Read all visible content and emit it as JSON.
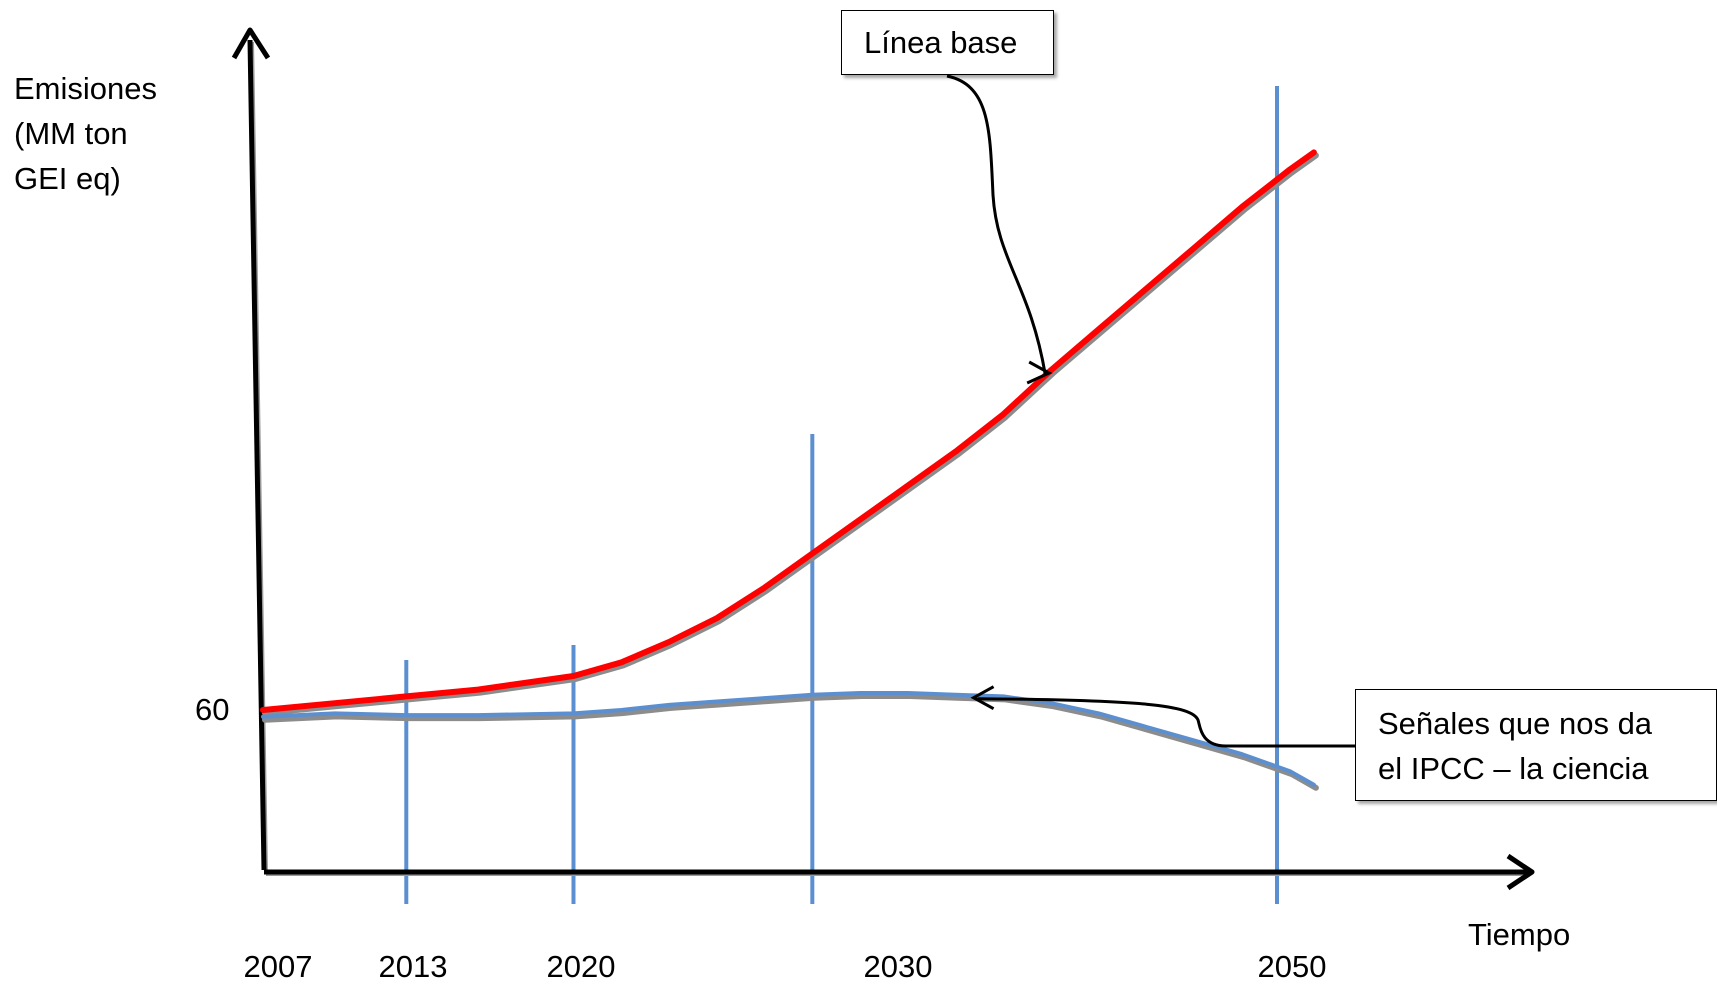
{
  "chart_data": {
    "type": "line",
    "ylabel": [
      "Emisiones",
      "(MM ton",
      "GEI eq)"
    ],
    "xlabel": "Tiempo",
    "xticks": [
      "2007",
      "2013",
      "2020",
      "2030",
      "2050"
    ],
    "yticks": [
      "60"
    ],
    "ytick_values": [
      60
    ],
    "xlim": [
      2007,
      2058
    ],
    "ylim": [
      40,
      220
    ],
    "vertical_lines": [
      {
        "x": 2013,
        "ymax": 108
      },
      {
        "x": 2020,
        "ymax": 110
      },
      {
        "x": 2030,
        "ymax": 225
      },
      {
        "x": 2050,
        "ymax": 295
      }
    ],
    "series": [
      {
        "name": "Línea base",
        "color": "#ff0000",
        "x": [
          2007,
          2010,
          2013,
          2016,
          2020,
          2022,
          2024,
          2026,
          2028,
          2030,
          2032,
          2034,
          2036,
          2038,
          2040,
          2042,
          2044,
          2046,
          2048,
          2050,
          2051
        ],
        "y": [
          60,
          62,
          64,
          66,
          70,
          74,
          80,
          87,
          96,
          106,
          116,
          126,
          136,
          147,
          160,
          172,
          184,
          196,
          208,
          219,
          224
        ]
      },
      {
        "name": "Señales que nos da el IPCC – la ciencia",
        "color": "#5b8fd0",
        "x": [
          2007,
          2010,
          2013,
          2016,
          2020,
          2022,
          2024,
          2026,
          2028,
          2030,
          2032,
          2034,
          2036,
          2038,
          2040,
          2042,
          2044,
          2046,
          2048,
          2050,
          2051
        ],
        "y": [
          58,
          59,
          58.5,
          58.5,
          59,
          60,
          61.5,
          62.5,
          63.5,
          64.5,
          65,
          65,
          64.5,
          64,
          62,
          59,
          55,
          51,
          47,
          42,
          38
        ]
      }
    ],
    "annotations": {
      "base_label": "Línea base",
      "ipcc_label_line1": "Señales que nos da",
      "ipcc_label_line2": "el IPCC – la ciencia",
      "ipcc_target": {
        "x": 2036.5,
        "y": 64.5
      },
      "base_target": {
        "x": 2040,
        "y": 160
      }
    },
    "grid": false,
    "legend": "none"
  }
}
